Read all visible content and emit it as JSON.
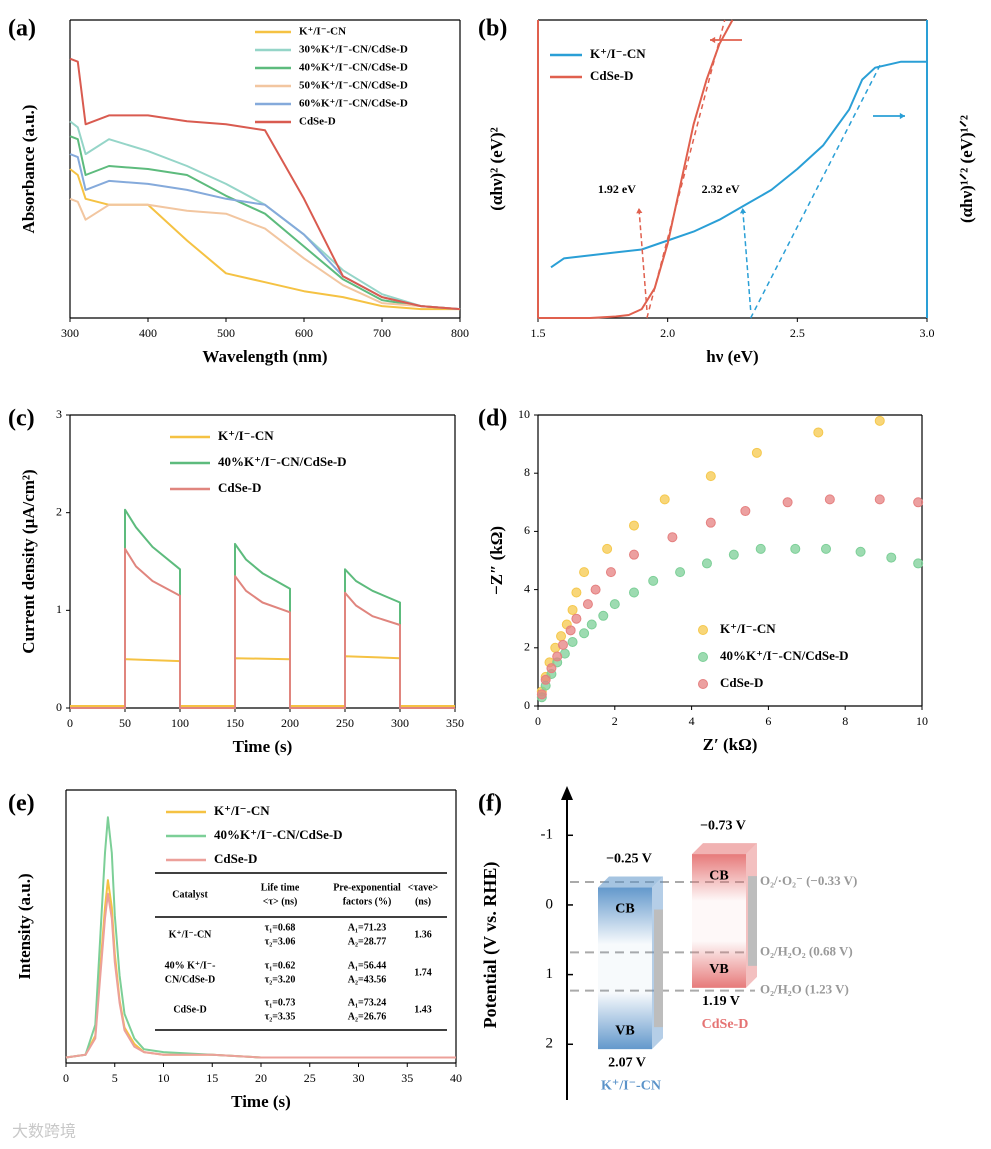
{
  "chart_data": [
    {
      "type": "line",
      "panel_label": "(a)",
      "xlabel": "Wavelength (nm)",
      "ylabel": "Absorbance (a.u.)",
      "x": [
        300,
        310,
        320,
        350,
        400,
        450,
        500,
        550,
        600,
        650,
        700,
        750,
        800
      ],
      "xlim": [
        300,
        800
      ],
      "xticks": [
        300,
        400,
        500,
        600,
        700,
        800
      ],
      "ylim": [
        0,
        1
      ],
      "legend": "upper right",
      "series": [
        {
          "name": "K⁺/I⁻-CN",
          "color": "#f5c243",
          "values": [
            0.5,
            0.48,
            0.4,
            0.38,
            0.38,
            0.26,
            0.15,
            0.12,
            0.09,
            0.07,
            0.04,
            0.03,
            0.03
          ]
        },
        {
          "name": "30%K⁺/I⁻-CN/CdSe-D",
          "color": "#95d5c8",
          "values": [
            0.66,
            0.64,
            0.55,
            0.6,
            0.56,
            0.51,
            0.45,
            0.38,
            0.28,
            0.16,
            0.08,
            0.04,
            0.03
          ]
        },
        {
          "name": "40%K⁺/I⁻-CN/CdSe-D",
          "color": "#5dbb7d",
          "values": [
            0.61,
            0.6,
            0.48,
            0.51,
            0.5,
            0.48,
            0.41,
            0.35,
            0.24,
            0.13,
            0.06,
            0.04,
            0.03
          ]
        },
        {
          "name": "50%K⁺/I⁻-CN/CdSe-D",
          "color": "#f2c6a0",
          "values": [
            0.4,
            0.39,
            0.33,
            0.38,
            0.38,
            0.36,
            0.35,
            0.3,
            0.2,
            0.11,
            0.05,
            0.04,
            0.03
          ]
        },
        {
          "name": "60%K⁺/I⁻-CN/CdSe-D",
          "color": "#85aadb",
          "values": [
            0.55,
            0.54,
            0.43,
            0.46,
            0.45,
            0.43,
            0.4,
            0.38,
            0.28,
            0.14,
            0.07,
            0.04,
            0.03
          ]
        },
        {
          "name": "CdSe-D",
          "color": "#d95b50",
          "values": [
            0.87,
            0.86,
            0.65,
            0.68,
            0.68,
            0.66,
            0.65,
            0.63,
            0.4,
            0.14,
            0.07,
            0.04,
            0.03
          ]
        }
      ]
    },
    {
      "type": "line",
      "panel_label": "(b)",
      "xlabel": "hν (eV)",
      "ylabel": "(αhν)² (eV)²",
      "y2label": "(αhν)¹ᐟ² (eV)¹ᐟ²",
      "xlim": [
        1.5,
        3.0
      ],
      "xticks": [
        1.5,
        {
          "value": 2.0,
          "label": "2.0"
        },
        2.5,
        {
          "value": 3.0,
          "label": "3.0"
        }
      ],
      "ylim": [
        0,
        1
      ],
      "y2lim": [
        0,
        1
      ],
      "legend": "upper left",
      "series": [
        {
          "name": "K⁺/I⁻-CN",
          "color": "#2a9fd6",
          "axis": "y2",
          "x": [
            1.55,
            1.6,
            1.7,
            1.8,
            1.9,
            2.0,
            2.1,
            2.2,
            2.3,
            2.4,
            2.5,
            2.6,
            2.7,
            2.75,
            2.8,
            2.9,
            3.0
          ],
          "values": [
            0.17,
            0.2,
            0.21,
            0.22,
            0.23,
            0.26,
            0.29,
            0.33,
            0.38,
            0.43,
            0.5,
            0.58,
            0.7,
            0.8,
            0.84,
            0.86,
            0.86
          ],
          "tangent": {
            "x": [
              2.32,
              2.82
            ],
            "values": [
              0,
              0.85
            ]
          },
          "annotation": "2.32 eV"
        },
        {
          "name": "CdSe-D",
          "color": "#e0604e",
          "x": [
            1.5,
            1.7,
            1.8,
            1.85,
            1.9,
            1.95,
            2.0,
            2.05,
            2.1,
            2.15,
            2.2,
            2.25
          ],
          "values": [
            0,
            0,
            0.005,
            0.01,
            0.03,
            0.1,
            0.25,
            0.45,
            0.65,
            0.8,
            0.92,
            1.0
          ],
          "tangent": {
            "x": [
              1.92,
              2.22
            ],
            "values": [
              0,
              1.0
            ]
          },
          "annotation": "1.92 eV"
        }
      ]
    },
    {
      "type": "line",
      "panel_label": "(c)",
      "xlabel": "Time (s)",
      "ylabel": "Current density (μA/cm²)",
      "xlim": [
        0,
        350
      ],
      "xticks": [
        0,
        50,
        100,
        150,
        200,
        250,
        300,
        350
      ],
      "ylim": [
        0,
        3
      ],
      "yticks": [
        0,
        1,
        2,
        3
      ],
      "legend": "upper center",
      "series": [
        {
          "name": "K⁺/I⁻-CN",
          "color": "#f5c243",
          "x": [
            0,
            50,
            50,
            100,
            100,
            150,
            150,
            200,
            200,
            250,
            250,
            300,
            300,
            350
          ],
          "values": [
            0.02,
            0.02,
            0.5,
            0.48,
            0.02,
            0.02,
            0.51,
            0.5,
            0.02,
            0.02,
            0.53,
            0.51,
            0.02,
            0.02
          ]
        },
        {
          "name": "40%K⁺/I⁻-CN/CdSe-D",
          "color": "#5dbb7d",
          "x": [
            0,
            50,
            50,
            60,
            75,
            100,
            100,
            150,
            150,
            160,
            175,
            200,
            200,
            250,
            250,
            260,
            275,
            300,
            300,
            350
          ],
          "values": [
            0,
            0,
            2.03,
            1.85,
            1.65,
            1.42,
            0,
            0,
            1.68,
            1.52,
            1.38,
            1.22,
            0,
            0,
            1.42,
            1.3,
            1.2,
            1.08,
            0,
            0
          ]
        },
        {
          "name": "CdSe-D",
          "color": "#e0857e",
          "x": [
            0,
            50,
            50,
            60,
            75,
            100,
            100,
            150,
            150,
            160,
            175,
            200,
            200,
            250,
            250,
            260,
            275,
            300,
            300,
            350
          ],
          "values": [
            0,
            0,
            1.63,
            1.45,
            1.3,
            1.15,
            0,
            0,
            1.35,
            1.2,
            1.08,
            0.98,
            0,
            0,
            1.18,
            1.05,
            0.94,
            0.85,
            0,
            0
          ]
        }
      ]
    },
    {
      "type": "scatter",
      "panel_label": "(d)",
      "xlabel": "Z′ (kΩ)",
      "ylabel": "−Z″ (kΩ)",
      "xlim": [
        0,
        10
      ],
      "xticks": [
        0,
        2,
        4,
        6,
        8,
        10
      ],
      "ylim": [
        0,
        10
      ],
      "yticks": [
        0,
        2,
        4,
        6,
        8,
        10
      ],
      "legend": "lower center",
      "series": [
        {
          "name": "K⁺/I⁻-CN",
          "color": "#f5c84c",
          "x": [
            0.1,
            0.2,
            0.3,
            0.45,
            0.6,
            0.75,
            0.9,
            1.0,
            1.2,
            1.8,
            2.5,
            3.3,
            4.5,
            5.7,
            7.3,
            8.9
          ],
          "values": [
            0.5,
            1.0,
            1.5,
            2.0,
            2.4,
            2.8,
            3.3,
            3.9,
            4.6,
            5.4,
            6.2,
            7.1,
            7.9,
            8.7,
            9.4,
            9.8
          ]
        },
        {
          "name": "40%K⁺/I⁻-CN/CdSe-D",
          "color": "#7ccf97",
          "x": [
            0.1,
            0.2,
            0.35,
            0.5,
            0.7,
            0.9,
            1.2,
            1.4,
            1.7,
            2.0,
            2.5,
            3.0,
            3.7,
            4.4,
            5.1,
            5.8,
            6.7,
            7.5,
            8.4,
            9.2,
            9.9
          ],
          "values": [
            0.3,
            0.7,
            1.1,
            1.5,
            1.8,
            2.2,
            2.5,
            2.8,
            3.1,
            3.5,
            3.9,
            4.3,
            4.6,
            4.9,
            5.2,
            5.4,
            5.4,
            5.4,
            5.3,
            5.1,
            4.9
          ]
        },
        {
          "name": "CdSe-D",
          "color": "#e58080",
          "x": [
            0.1,
            0.2,
            0.35,
            0.5,
            0.65,
            0.85,
            1.0,
            1.3,
            1.5,
            1.9,
            2.5,
            3.5,
            4.5,
            5.4,
            6.5,
            7.6,
            8.9,
            9.9
          ],
          "values": [
            0.4,
            0.9,
            1.3,
            1.7,
            2.1,
            2.6,
            3.0,
            3.5,
            4.0,
            4.6,
            5.2,
            5.8,
            6.3,
            6.7,
            7.0,
            7.1,
            7.1,
            7.0
          ]
        }
      ]
    },
    {
      "type": "line",
      "panel_label": "(e)",
      "xlabel": "Time (s)",
      "ylabel": "Intensity (a.u.)",
      "x": [
        0,
        2,
        3,
        3.5,
        4,
        4.3,
        4.7,
        5,
        5.5,
        6,
        7,
        8,
        10,
        15,
        20,
        30,
        40
      ],
      "xlim": [
        0,
        40
      ],
      "xticks": [
        0,
        5,
        10,
        15,
        20,
        25,
        30,
        35,
        40
      ],
      "ylim": [
        0,
        1
      ],
      "legend": "upper center",
      "series": [
        {
          "name": "K⁺/I⁻-CN",
          "color": "#f5c243",
          "values": [
            0.02,
            0.03,
            0.1,
            0.34,
            0.57,
            0.67,
            0.57,
            0.4,
            0.23,
            0.13,
            0.07,
            0.04,
            0.03,
            0.03,
            0.02,
            0.02,
            0.02
          ]
        },
        {
          "name": "40%K⁺/I⁻-CN/CdSe-D",
          "color": "#7ccf97",
          "values": [
            0.02,
            0.03,
            0.14,
            0.45,
            0.77,
            0.9,
            0.77,
            0.54,
            0.32,
            0.18,
            0.09,
            0.05,
            0.04,
            0.03,
            0.02,
            0.02,
            0.02
          ]
        },
        {
          "name": "CdSe-D",
          "color": "#eca09a",
          "values": [
            0.02,
            0.03,
            0.09,
            0.31,
            0.53,
            0.62,
            0.53,
            0.37,
            0.22,
            0.12,
            0.06,
            0.04,
            0.03,
            0.03,
            0.02,
            0.02,
            0.02
          ]
        }
      ],
      "table": {
        "header": [
          [
            "Catalyst"
          ],
          [
            "Life time",
            "<τ> (ns)"
          ],
          [
            "Pre-exponential",
            "factors (%)"
          ],
          [
            "<τave>",
            "(ns)"
          ]
        ],
        "rows": [
          [
            [
              "K⁺/I⁻-CN"
            ],
            [
              "τ₁=0.68",
              "τ₂=3.06"
            ],
            [
              "A₁=71.23",
              "A₂=28.77"
            ],
            [
              "1.36"
            ]
          ],
          [
            [
              "40% K⁺/I⁻-",
              "CN/CdSe-D"
            ],
            [
              "τ₁=0.62",
              "τ₂=3.20"
            ],
            [
              "A₁=56.44",
              "A₂=43.56"
            ],
            [
              "1.74"
            ]
          ],
          [
            [
              "CdSe-D"
            ],
            [
              "τ₁=0.73",
              "τ₂=3.35"
            ],
            [
              "A₁=73.24",
              "A₂=26.76"
            ],
            [
              "1.43"
            ]
          ]
        ]
      }
    },
    {
      "type": "band",
      "panel_label": "(f)",
      "ylabel": "Potential (V vs. RHE)",
      "ylim": [
        -1.65,
        2.8
      ],
      "invert_y": true,
      "yticks": [
        -1,
        0,
        1,
        2
      ],
      "bands": [
        {
          "name": "K⁺/I⁻-CN",
          "color": "#5b93c9",
          "cb": -0.25,
          "vb": 2.07,
          "cb_label": "−0.25 V",
          "vb_label": "2.07 V",
          "cb_text": "CB",
          "vb_text": "VB"
        },
        {
          "name": "CdSe-D",
          "color": "#e57373",
          "cb": -0.73,
          "vb": 1.19,
          "cb_label": "−0.73 V",
          "vb_label": "1.19 V",
          "cb_text": "CB",
          "vb_text": "VB"
        }
      ],
      "levels": [
        {
          "label": "O₂/·O₂⁻ (−0.33 V)",
          "value": -0.33
        },
        {
          "label": "O₂/H₂O₂ (0.68 V)",
          "value": 0.68
        },
        {
          "label": "O₂/H₂O (1.23 V)",
          "value": 1.23
        }
      ]
    }
  ],
  "watermark": "大数跨境"
}
